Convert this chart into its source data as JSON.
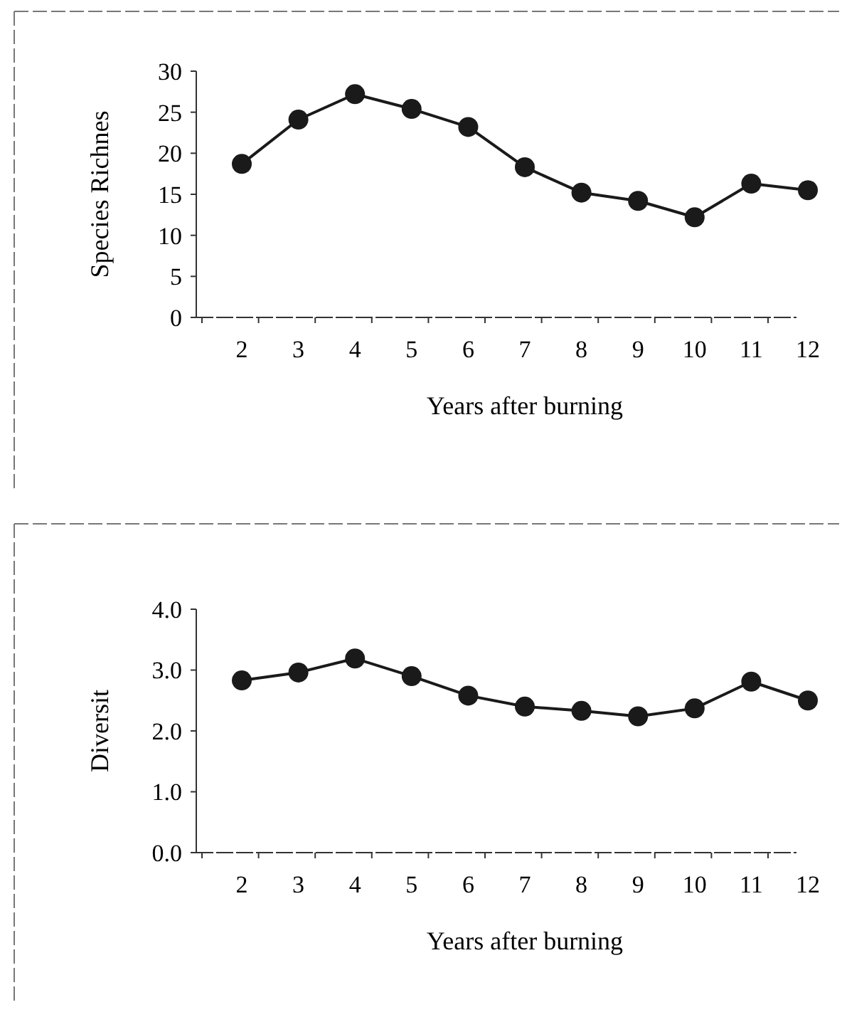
{
  "chart_data": [
    {
      "type": "line",
      "categories": [
        "2",
        "3",
        "4",
        "5",
        "6",
        "7",
        "8",
        "9",
        "10",
        "11",
        "12"
      ],
      "xlabel": "Years after burning",
      "ylabel": "Species Richnes",
      "ylim": [
        0,
        30
      ],
      "yticks": [
        0,
        5,
        10,
        15,
        20,
        25,
        30
      ],
      "marker": "circle",
      "series": [
        {
          "color": "#1a1a1a",
          "values": [
            18.7,
            24.1,
            27.2,
            25.4,
            23.2,
            18.3,
            15.2,
            14.2,
            12.2,
            16.3,
            15.5
          ]
        }
      ]
    },
    {
      "type": "line",
      "categories": [
        "2",
        "3",
        "4",
        "5",
        "6",
        "7",
        "8",
        "9",
        "10",
        "11",
        "12"
      ],
      "xlabel": "Years after burning",
      "ylabel": "Diversit",
      "ylim": [
        0,
        4
      ],
      "yticks": [
        {
          "value": 0,
          "label": "0.0"
        },
        {
          "value": 1,
          "label": "1.0"
        },
        {
          "value": 2,
          "label": "2.0"
        },
        {
          "value": 3,
          "label": "3.0"
        },
        {
          "value": 4,
          "label": "4.0"
        }
      ],
      "marker": "circle",
      "series": [
        {
          "color": "#1a1a1a",
          "values": [
            2.83,
            2.96,
            3.19,
            2.9,
            2.58,
            2.4,
            2.33,
            2.24,
            2.37,
            2.81,
            2.5
          ]
        }
      ]
    }
  ]
}
